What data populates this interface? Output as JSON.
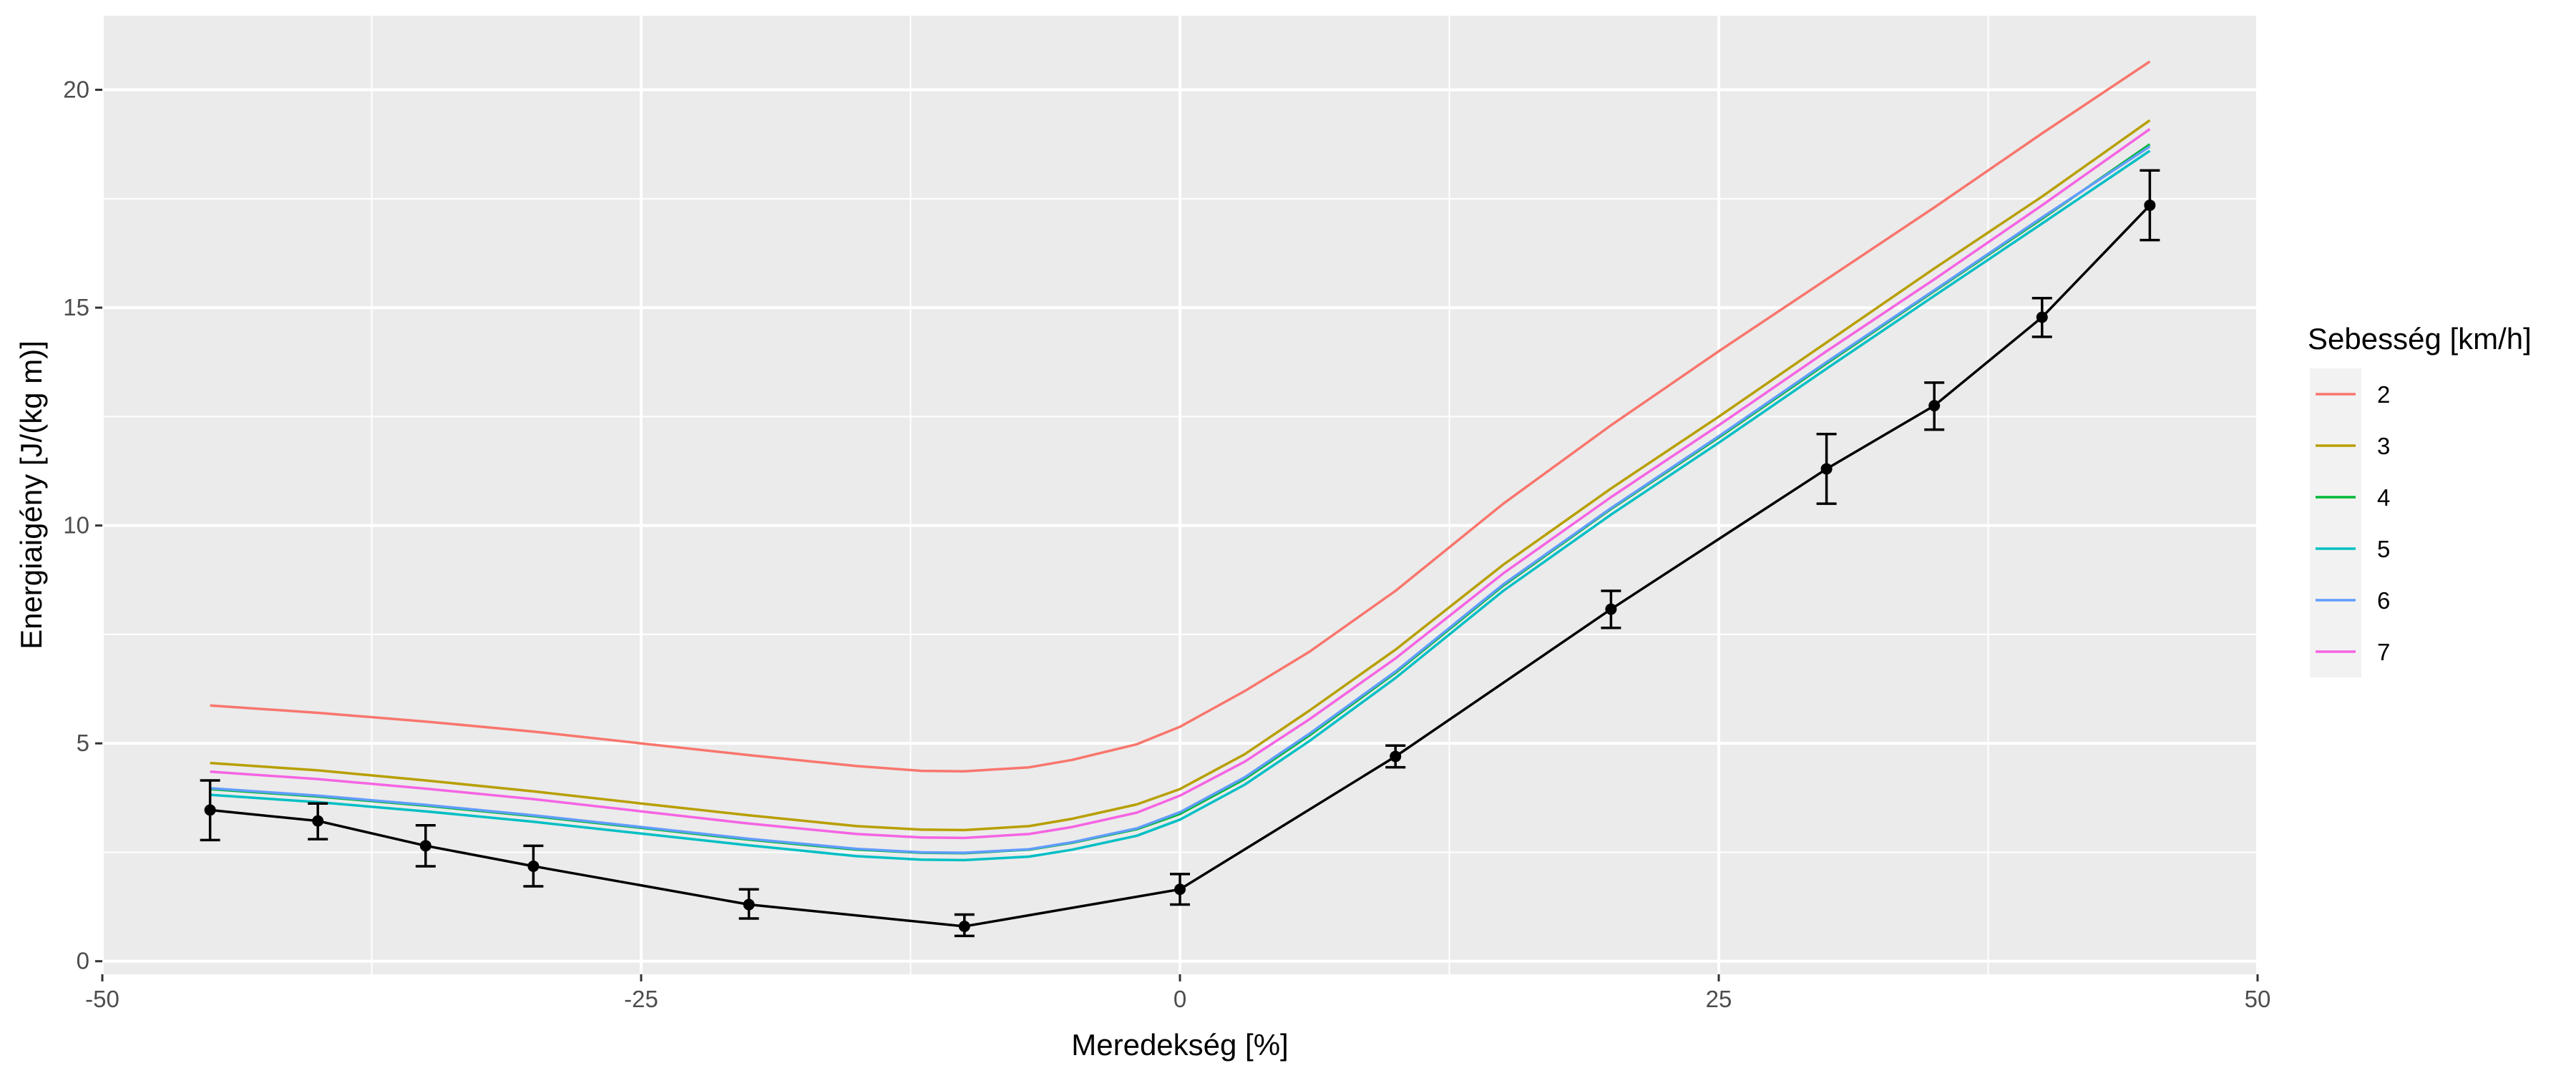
{
  "chart_data": {
    "type": "line",
    "title": "",
    "xlabel": "Meredekség [%]",
    "ylabel": "Energiaigény [J/(kg m)]",
    "xlim": [
      -50,
      50
    ],
    "ylim": [
      -0.3,
      21.7
    ],
    "x_ticks": [
      -50,
      -25,
      0,
      25,
      50
    ],
    "y_ticks": [
      0,
      5,
      10,
      15,
      20
    ],
    "x_tick_labels": [
      "-50",
      "-25",
      "0",
      "25",
      "50"
    ],
    "y_tick_labels": [
      "0",
      "5",
      "10",
      "15",
      "20"
    ],
    "grid": true,
    "legend": {
      "title": "Sebesség [km/h]",
      "placement": "right",
      "entries": [
        "2",
        "3",
        "4",
        "5",
        "6",
        "7"
      ]
    },
    "x": [
      -45,
      -40,
      -35,
      -30,
      -25,
      -20,
      -15,
      -12,
      -10,
      -7,
      -5,
      -2,
      0,
      3,
      6,
      10,
      15,
      20,
      25,
      30,
      35,
      40,
      45
    ],
    "series": [
      {
        "name": "2",
        "color": "#F8766D",
        "values": [
          5.87,
          5.7,
          5.5,
          5.27,
          5.0,
          4.73,
          4.48,
          4.37,
          4.36,
          4.45,
          4.62,
          4.98,
          5.38,
          6.2,
          7.1,
          8.5,
          10.5,
          12.3,
          14.0,
          15.65,
          17.3,
          19.0,
          20.65
        ]
      },
      {
        "name": "3",
        "color": "#B79F00",
        "values": [
          4.55,
          4.38,
          4.15,
          3.9,
          3.62,
          3.35,
          3.1,
          3.02,
          3.01,
          3.1,
          3.27,
          3.6,
          3.95,
          4.75,
          5.75,
          7.15,
          9.1,
          10.85,
          12.5,
          14.2,
          15.9,
          17.55,
          19.3
        ]
      },
      {
        "name": "4",
        "color": "#00BA38",
        "values": [
          3.95,
          3.78,
          3.57,
          3.33,
          3.06,
          2.79,
          2.56,
          2.49,
          2.48,
          2.56,
          2.72,
          3.03,
          3.38,
          4.18,
          5.18,
          6.62,
          8.62,
          10.38,
          12.02,
          13.72,
          15.38,
          17.04,
          18.75
        ]
      },
      {
        "name": "5",
        "color": "#00BFC4",
        "values": [
          3.82,
          3.65,
          3.44,
          3.2,
          2.93,
          2.66,
          2.41,
          2.33,
          2.32,
          2.4,
          2.56,
          2.88,
          3.25,
          4.05,
          5.05,
          6.5,
          8.5,
          10.25,
          11.9,
          13.6,
          15.27,
          16.93,
          18.6
        ]
      },
      {
        "name": "6",
        "color": "#619CFF",
        "values": [
          3.97,
          3.8,
          3.59,
          3.35,
          3.08,
          2.81,
          2.58,
          2.5,
          2.49,
          2.57,
          2.73,
          3.05,
          3.42,
          4.22,
          5.22,
          6.65,
          8.65,
          10.4,
          12.05,
          13.75,
          15.4,
          17.07,
          18.7
        ]
      },
      {
        "name": "7",
        "color": "#F564E3",
        "values": [
          4.35,
          4.18,
          3.96,
          3.72,
          3.44,
          3.16,
          2.92,
          2.84,
          2.83,
          2.92,
          3.08,
          3.41,
          3.8,
          4.58,
          5.55,
          6.95,
          8.9,
          10.65,
          12.3,
          14.0,
          15.65,
          17.35,
          19.1
        ]
      }
    ],
    "measured": {
      "color": "#000000",
      "points": [
        {
          "x": -45,
          "y": 3.47,
          "lo": 2.78,
          "hi": 4.15
        },
        {
          "x": -40,
          "y": 3.22,
          "lo": 2.8,
          "hi": 3.62
        },
        {
          "x": -35,
          "y": 2.65,
          "lo": 2.18,
          "hi": 3.12
        },
        {
          "x": -30,
          "y": 2.18,
          "lo": 1.72,
          "hi": 2.65
        },
        {
          "x": -20,
          "y": 1.3,
          "lo": 0.98,
          "hi": 1.65
        },
        {
          "x": -10,
          "y": 0.8,
          "lo": 0.58,
          "hi": 1.07
        },
        {
          "x": 0,
          "y": 1.65,
          "lo": 1.3,
          "hi": 2.0
        },
        {
          "x": 10,
          "y": 4.7,
          "lo": 4.45,
          "hi": 4.95
        },
        {
          "x": 20,
          "y": 8.08,
          "lo": 7.65,
          "hi": 8.5
        },
        {
          "x": 30,
          "y": 11.3,
          "lo": 10.5,
          "hi": 12.1
        },
        {
          "x": 35,
          "y": 12.75,
          "lo": 12.2,
          "hi": 13.28
        },
        {
          "x": 40,
          "y": 14.78,
          "lo": 14.33,
          "hi": 15.22
        },
        {
          "x": 45,
          "y": 17.35,
          "lo": 16.55,
          "hi": 18.15
        }
      ]
    }
  }
}
